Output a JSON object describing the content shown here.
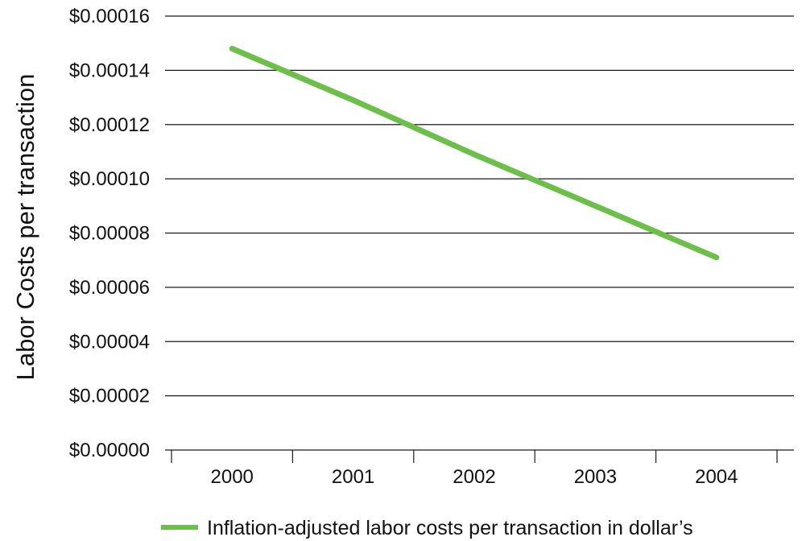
{
  "chart_data": {
    "type": "line",
    "title": "",
    "xlabel": "",
    "ylabel": "Labor Costs per transaction",
    "categories": [
      "2000",
      "2001",
      "2002",
      "2003",
      "2004"
    ],
    "series": [
      {
        "name": "Inflation-adjusted labor costs per transaction in dollar’s",
        "values": [
          0.000148,
          0.000129,
          0.000109,
          9e-05,
          7.1e-05
        ],
        "color": "#6cc04a"
      }
    ],
    "yticks": [
      0,
      2e-05,
      4e-05,
      6e-05,
      8e-05,
      0.0001,
      0.00012,
      0.00014,
      0.00016
    ],
    "ytick_labels": [
      "$0.00000",
      "$0.00002",
      "$0.00004",
      "$0.00006",
      "$0.00008",
      "$0.00010",
      "$0.00012",
      "$0.00014",
      "$0.00016"
    ],
    "ylim": [
      0,
      0.00016
    ],
    "grid": true,
    "legend_position": "bottom"
  }
}
